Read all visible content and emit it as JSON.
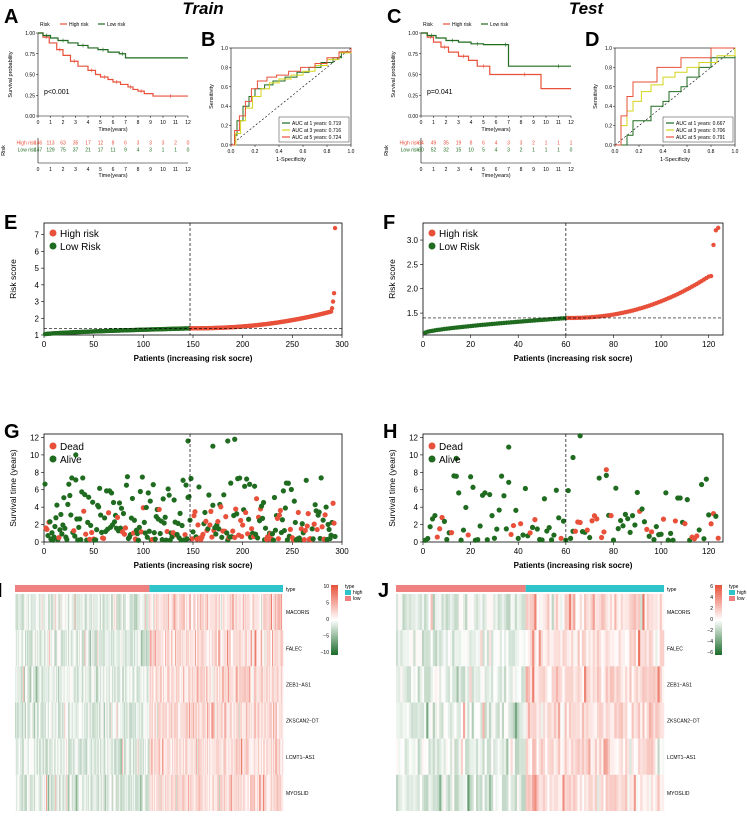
{
  "figure": {
    "headers": {
      "train": "Train",
      "test": "Test"
    },
    "colors": {
      "high": "#e8503a",
      "low": "#1f6b1f",
      "auc1": "#1f6b1f",
      "auc3": "#d4d41a",
      "auc5": "#e8503a",
      "heat_low": "#1a6b2a",
      "heat_mid": "#ffffff",
      "heat_high": "#e8503a",
      "type_high": "#2ec4c9",
      "type_low": "#f08080"
    }
  },
  "chart_data": [
    {
      "id": "A",
      "panel_label": "A",
      "type": "line",
      "subtype": "kaplan-meier",
      "legend": {
        "title": "Risk",
        "entries": [
          "High risk",
          "Low risk"
        ]
      },
      "xlabel": "Time(years)",
      "ylabel": "Survival probability",
      "xlim": [
        0,
        12
      ],
      "ylim": [
        0,
        1
      ],
      "xticks": [
        "0",
        "1",
        "2",
        "3",
        "4",
        "5",
        "6",
        "7",
        "8",
        "9",
        "10",
        "11",
        "12"
      ],
      "yticks": [
        "0.00",
        "0.25",
        "0.50",
        "0.75",
        "1.00"
      ],
      "annotation": "p<0.001",
      "series": [
        {
          "name": "High risk",
          "x": [
            0,
            0.4,
            0.9,
            1.5,
            2,
            2.6,
            3.2,
            4,
            4.6,
            5,
            5.6,
            6,
            6.6,
            7.2,
            7.6,
            8,
            8.5,
            9.2,
            12
          ],
          "y": [
            1,
            0.95,
            0.88,
            0.8,
            0.73,
            0.66,
            0.6,
            0.55,
            0.5,
            0.47,
            0.44,
            0.41,
            0.38,
            0.35,
            0.32,
            0.3,
            0.27,
            0.24,
            0.24
          ]
        },
        {
          "name": "Low risk",
          "x": [
            0,
            0.4,
            1,
            1.6,
            2.4,
            3.2,
            4,
            4.8,
            5.6,
            6.5,
            7,
            12
          ],
          "y": [
            1,
            0.97,
            0.94,
            0.91,
            0.88,
            0.85,
            0.82,
            0.8,
            0.77,
            0.75,
            0.7,
            0.7
          ]
        }
      ],
      "risk_table": {
        "row_title": "Risk",
        "xlabel": "Time(years)",
        "rows": [
          {
            "label": "High risk",
            "counts": [
              "146",
              "113",
              "63",
              "35",
              "17",
              "12",
              "8",
              "6",
              "3",
              "3",
              "3",
              "2",
              "0"
            ]
          },
          {
            "label": "Low risk",
            "counts": [
              "147",
              "129",
              "75",
              "37",
              "21",
              "17",
              "11",
              "9",
              "4",
              "3",
              "1",
              "1",
              "0"
            ]
          }
        ]
      }
    },
    {
      "id": "B",
      "panel_label": "B",
      "type": "line",
      "subtype": "roc",
      "xlabel": "1-Specificity",
      "ylabel": "Sensitivity",
      "xlim": [
        0,
        1
      ],
      "ylim": [
        0,
        1
      ],
      "xticks": [
        "0.0",
        "0.2",
        "0.4",
        "0.6",
        "0.8",
        "1.0"
      ],
      "yticks": [
        "0.0",
        "0.2",
        "0.4",
        "0.6",
        "0.8",
        "1.0"
      ],
      "legend": [
        "AUC at 1 years: 0.719",
        "AUC at 3 years: 0.716",
        "AUC at 5 years: 0.724"
      ],
      "series": [
        {
          "name": "1 years",
          "x": [
            0,
            0.03,
            0.05,
            0.1,
            0.15,
            0.2,
            0.28,
            0.35,
            0.45,
            0.55,
            0.65,
            0.75,
            0.85,
            0.92,
            1
          ],
          "y": [
            0,
            0.1,
            0.25,
            0.4,
            0.5,
            0.58,
            0.62,
            0.66,
            0.7,
            0.75,
            0.8,
            0.85,
            0.9,
            0.96,
            1
          ]
        },
        {
          "name": "3 years",
          "x": [
            0,
            0.04,
            0.08,
            0.12,
            0.18,
            0.25,
            0.32,
            0.4,
            0.5,
            0.6,
            0.7,
            0.8,
            0.9,
            1
          ],
          "y": [
            0,
            0.12,
            0.25,
            0.38,
            0.5,
            0.58,
            0.64,
            0.68,
            0.72,
            0.76,
            0.82,
            0.88,
            0.95,
            1
          ]
        },
        {
          "name": "5 years",
          "x": [
            0,
            0.03,
            0.07,
            0.12,
            0.17,
            0.22,
            0.3,
            0.38,
            0.48,
            0.58,
            0.7,
            0.8,
            0.9,
            1
          ],
          "y": [
            0,
            0.15,
            0.3,
            0.45,
            0.58,
            0.66,
            0.7,
            0.72,
            0.76,
            0.8,
            0.84,
            0.9,
            0.96,
            1
          ]
        }
      ]
    },
    {
      "id": "C",
      "panel_label": "C",
      "type": "line",
      "subtype": "kaplan-meier",
      "legend": {
        "title": "Risk",
        "entries": [
          "High risk",
          "Low risk"
        ]
      },
      "xlabel": "Time(years)",
      "ylabel": "Survival probability",
      "xlim": [
        0,
        12
      ],
      "ylim": [
        0,
        1
      ],
      "xticks": [
        "0",
        "1",
        "2",
        "3",
        "4",
        "5",
        "6",
        "7",
        "8",
        "9",
        "10",
        "11",
        "12"
      ],
      "yticks": [
        "0.00",
        "0.25",
        "0.50",
        "0.75",
        "1.00"
      ],
      "annotation": "p=0.041",
      "series": [
        {
          "name": "High risk",
          "x": [
            0,
            0.5,
            1,
            1.6,
            2.2,
            3,
            3.8,
            4.5,
            5.5,
            7,
            9.6,
            12
          ],
          "y": [
            1,
            0.95,
            0.89,
            0.83,
            0.77,
            0.72,
            0.67,
            0.6,
            0.5,
            0.5,
            0.33,
            0.33
          ]
        },
        {
          "name": "Low risk",
          "x": [
            0,
            0.5,
            1.2,
            2,
            3,
            4,
            5,
            6.5,
            7,
            10,
            12
          ],
          "y": [
            1,
            0.97,
            0.94,
            0.91,
            0.89,
            0.87,
            0.86,
            0.86,
            0.6,
            0.6,
            0.6
          ]
        }
      ],
      "risk_table": {
        "row_title": "Risk",
        "xlabel": "Time(years)",
        "rows": [
          {
            "label": "High risk",
            "counts": [
              "64",
              "49",
              "35",
              "19",
              "8",
              "6",
              "4",
              "3",
              "3",
              "2",
              "1",
              "1",
              "1"
            ]
          },
          {
            "label": "Low risk",
            "counts": [
              "60",
              "52",
              "32",
              "15",
              "10",
              "5",
              "4",
              "3",
              "2",
              "1",
              "1",
              "1",
              "0"
            ]
          }
        ]
      }
    },
    {
      "id": "D",
      "panel_label": "D",
      "type": "line",
      "subtype": "roc",
      "xlabel": "1-Specificity",
      "ylabel": "Sensitivity",
      "xlim": [
        0,
        1
      ],
      "ylim": [
        0,
        1
      ],
      "xticks": [
        "0.0",
        "0.2",
        "0.4",
        "0.6",
        "0.8",
        "1.0"
      ],
      "yticks": [
        "0.0",
        "0.2",
        "0.4",
        "0.6",
        "0.8",
        "1.0"
      ],
      "legend": [
        "AUC at 1 years: 0.667",
        "AUC at 3 years: 0.706",
        "AUC at 5 years: 0.791"
      ],
      "series": [
        {
          "name": "1 years",
          "x": [
            0,
            0.1,
            0.15,
            0.25,
            0.3,
            0.4,
            0.45,
            0.55,
            0.6,
            0.7,
            0.8,
            0.9,
            1
          ],
          "y": [
            0,
            0.1,
            0.25,
            0.25,
            0.4,
            0.45,
            0.55,
            0.6,
            0.7,
            0.8,
            0.9,
            0.9,
            1
          ]
        },
        {
          "name": "3 years",
          "x": [
            0,
            0.05,
            0.1,
            0.15,
            0.22,
            0.3,
            0.4,
            0.5,
            0.6,
            0.7,
            0.85,
            1
          ],
          "y": [
            0,
            0.2,
            0.35,
            0.45,
            0.55,
            0.62,
            0.7,
            0.75,
            0.8,
            0.85,
            0.92,
            1
          ]
        },
        {
          "name": "5 years",
          "x": [
            0,
            0.05,
            0.1,
            0.15,
            0.3,
            0.35,
            0.5,
            0.55,
            0.7,
            0.8,
            1
          ],
          "y": [
            0,
            0.3,
            0.5,
            0.65,
            0.65,
            0.8,
            0.8,
            0.9,
            0.9,
            1,
            1
          ]
        }
      ]
    },
    {
      "id": "E",
      "panel_label": "E",
      "type": "scatter",
      "subtype": "risk-score",
      "xlabel": "Patients (increasing risk socre)",
      "ylabel": "Risk score",
      "legend": [
        "High risk",
        "Low Risk"
      ],
      "xlim": [
        0,
        300
      ],
      "ylim": [
        1,
        7.7
      ],
      "xticks": [
        "0",
        "50",
        "100",
        "150",
        "200",
        "250",
        "300"
      ],
      "yticks": [
        "1",
        "2",
        "3",
        "4",
        "5",
        "6",
        "7"
      ],
      "n": 293,
      "cutoff_index": 147,
      "cutoff_score": 1.4,
      "score_min": 1.05,
      "score_mid": 1.4,
      "score_high_tail": [
        2.4,
        2.6,
        3.0,
        3.5,
        7.4
      ]
    },
    {
      "id": "F",
      "panel_label": "F",
      "type": "scatter",
      "subtype": "risk-score",
      "xlabel": "Patients (increasing risk socre)",
      "ylabel": "Risk score",
      "legend": [
        "High risk",
        "Low Risk"
      ],
      "xlim": [
        0,
        126
      ],
      "ylim": [
        1.05,
        3.35
      ],
      "xticks": [
        "0",
        "20",
        "40",
        "60",
        "80",
        "100",
        "120"
      ],
      "yticks": [
        "1.5",
        "2.0",
        "2.5",
        "3.0"
      ],
      "n": 124,
      "cutoff_index": 60,
      "cutoff_score": 1.4,
      "score_min": 1.1,
      "score_mid": 1.4,
      "score_high_tail": [
        2.25,
        2.26,
        2.9,
        3.2,
        3.25
      ]
    },
    {
      "id": "G",
      "panel_label": "G",
      "type": "scatter",
      "subtype": "survival-status",
      "xlabel": "Patients (increasing risk socre)",
      "ylabel": "Survival time (years)",
      "legend": [
        "Dead",
        "Alive"
      ],
      "xlim": [
        0,
        300
      ],
      "ylim": [
        0,
        12.4
      ],
      "xticks": [
        "0",
        "50",
        "100",
        "150",
        "200",
        "250",
        "300"
      ],
      "yticks": [
        "0",
        "2",
        "4",
        "6",
        "8",
        "10",
        "12"
      ],
      "n": 293,
      "cutoff_index": 147,
      "dead_fraction_low": 0.18,
      "dead_fraction_high": 0.4,
      "notable_points": [
        {
          "x": 145,
          "y": 11.6,
          "status": "Alive"
        },
        {
          "x": 170,
          "y": 11.0,
          "status": "Alive"
        },
        {
          "x": 185,
          "y": 11.6,
          "status": "Alive"
        },
        {
          "x": 192,
          "y": 11.8,
          "status": "Alive"
        },
        {
          "x": 32,
          "y": 10.0,
          "status": "Alive"
        }
      ]
    },
    {
      "id": "H",
      "panel_label": "H",
      "type": "scatter",
      "subtype": "survival-status",
      "xlabel": "Patients (increasing risk socre)",
      "ylabel": "Survival time (years)",
      "legend": [
        "Dead",
        "Alive"
      ],
      "xlim": [
        0,
        126
      ],
      "ylim": [
        0,
        12.4
      ],
      "xticks": [
        "0",
        "20",
        "40",
        "60",
        "80",
        "100",
        "120"
      ],
      "yticks": [
        "0",
        "2",
        "4",
        "6",
        "8",
        "10",
        "12"
      ],
      "n": 124,
      "cutoff_index": 60,
      "dead_fraction_low": 0.18,
      "dead_fraction_high": 0.35,
      "notable_points": [
        {
          "x": 66,
          "y": 12.2,
          "status": "Alive"
        },
        {
          "x": 36,
          "y": 10.9,
          "status": "Alive"
        },
        {
          "x": 63,
          "y": 9.7,
          "status": "Alive"
        },
        {
          "x": 77,
          "y": 8.3,
          "status": "Dead"
        },
        {
          "x": 14,
          "y": 9.6,
          "status": "Alive"
        }
      ]
    },
    {
      "id": "I",
      "panel_label": "I",
      "type": "heatmap",
      "rows": [
        "MACORIS",
        "FALEC",
        "ZEB1−AS1",
        "ZKSCAN2−DT",
        "LCMT1−AS1",
        "MYOSLID"
      ],
      "n_columns": 293,
      "split_index": 147,
      "annotation_label": "type",
      "legend_title": "type",
      "legend_entries": [
        "high",
        "low"
      ],
      "scale_ticks": [
        "10",
        "5",
        "0",
        "−5",
        "−10"
      ]
    },
    {
      "id": "J",
      "panel_label": "J",
      "type": "heatmap",
      "rows": [
        "MACORIS",
        "FALEC",
        "ZEB1−AS1",
        "ZKSCAN2−DT",
        "LCMT1−AS1",
        "MYOSLID"
      ],
      "n_columns": 124,
      "split_index": 60,
      "annotation_label": "type",
      "legend_title": "type",
      "legend_entries": [
        "high",
        "low"
      ],
      "scale_ticks": [
        "6",
        "4",
        "2",
        "0",
        "−2",
        "−4",
        "−6"
      ]
    }
  ]
}
